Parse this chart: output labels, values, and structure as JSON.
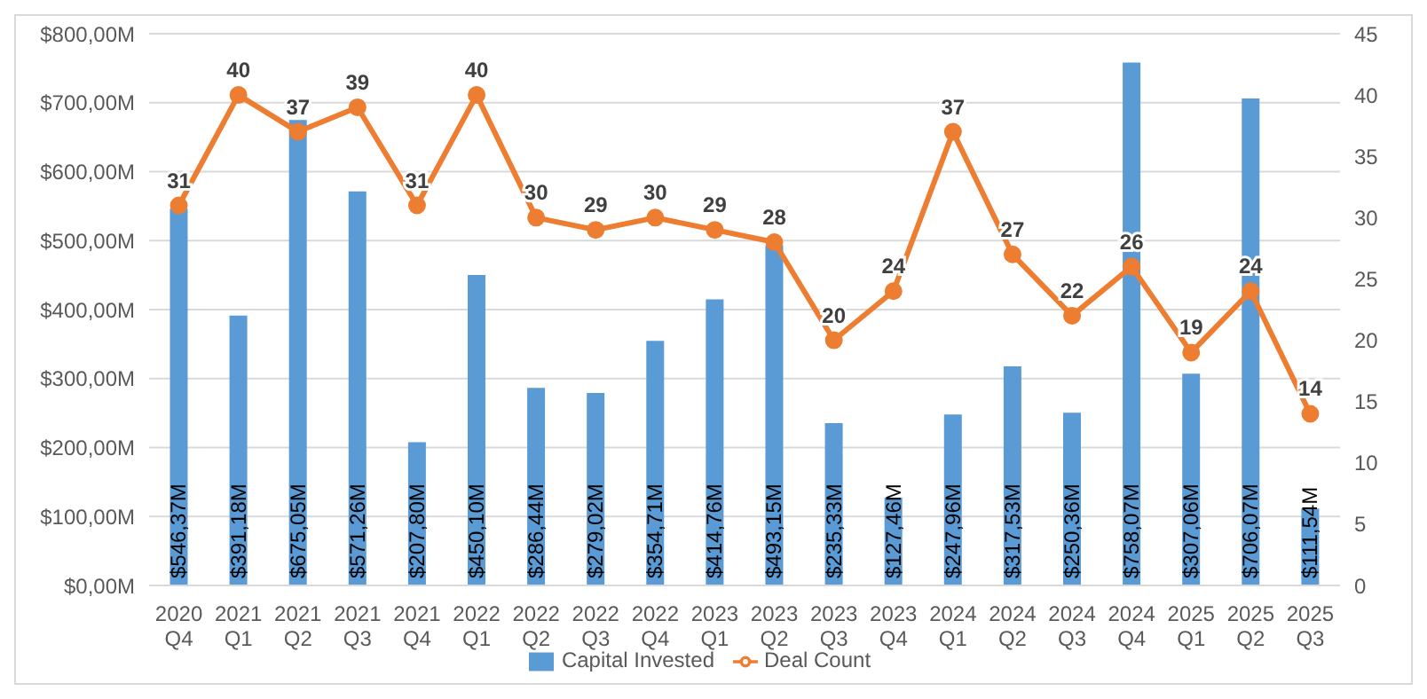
{
  "chart_data": {
    "type": "bar",
    "categories": [
      "2020 Q4",
      "2021 Q1",
      "2021 Q2",
      "2021 Q3",
      "2021 Q4",
      "2022 Q1",
      "2022 Q2",
      "2022 Q3",
      "2022 Q4",
      "2023 Q1",
      "2023 Q2",
      "2023 Q3",
      "2023 Q4",
      "2024 Q1",
      "2024 Q2",
      "2024 Q3",
      "2024 Q4",
      "2025 Q1",
      "2025 Q2",
      "2025 Q3"
    ],
    "series": [
      {
        "name": "Capital Invested",
        "color": "#5b9bd5",
        "values": [
          546.37,
          391.18,
          675.05,
          571.26,
          207.8,
          450.1,
          286.44,
          279.02,
          354.71,
          414.76,
          493.15,
          235.33,
          127.46,
          247.96,
          317.53,
          250.36,
          758.07,
          307.06,
          706.07,
          111.54
        ],
        "value_labels": [
          "$546,37M",
          "$391,18M",
          "$675,05M",
          "$571,26M",
          "$207,80M",
          "$450,10M",
          "$286,44M",
          "$279,02M",
          "$354,71M",
          "$414,76M",
          "$493,15M",
          "$235,33M",
          "$127,46M",
          "$247,96M",
          "$317,53M",
          "$250,36M",
          "$758,07M",
          "$307,06M",
          "$706,07M",
          "$111,54M"
        ]
      },
      {
        "name": "Deal Count",
        "type": "line",
        "axis": "y2",
        "color": "#ed7d31",
        "values": [
          31,
          40,
          37,
          39,
          31,
          40,
          30,
          29,
          30,
          29,
          28,
          20,
          24,
          37,
          27,
          22,
          26,
          19,
          24,
          14
        ],
        "value_labels": [
          "31",
          "40",
          "37",
          "39",
          "31",
          "40",
          "30",
          "29",
          "30",
          "29",
          "28",
          "20",
          "24",
          "37",
          "27",
          "22",
          "26",
          "19",
          "24",
          "14"
        ]
      }
    ],
    "ylim": [
      0,
      800
    ],
    "yticks": [
      {
        "value": 0,
        "label": "$0,00M"
      },
      {
        "value": 100,
        "label": "$100,00M"
      },
      {
        "value": 200,
        "label": "$200,00M"
      },
      {
        "value": 300,
        "label": "$300,00M"
      },
      {
        "value": 400,
        "label": "$400,00M"
      },
      {
        "value": 500,
        "label": "$500,00M"
      },
      {
        "value": 600,
        "label": "$600,00M"
      },
      {
        "value": 700,
        "label": "$700,00M"
      },
      {
        "value": 800,
        "label": "$800,00M"
      }
    ],
    "y2lim": [
      0,
      45
    ],
    "y2ticks": [
      0,
      5,
      10,
      15,
      20,
      25,
      30,
      35,
      40,
      45
    ],
    "grid": "y",
    "legend": "bottom",
    "marker": "circle",
    "line_style": "solid"
  }
}
